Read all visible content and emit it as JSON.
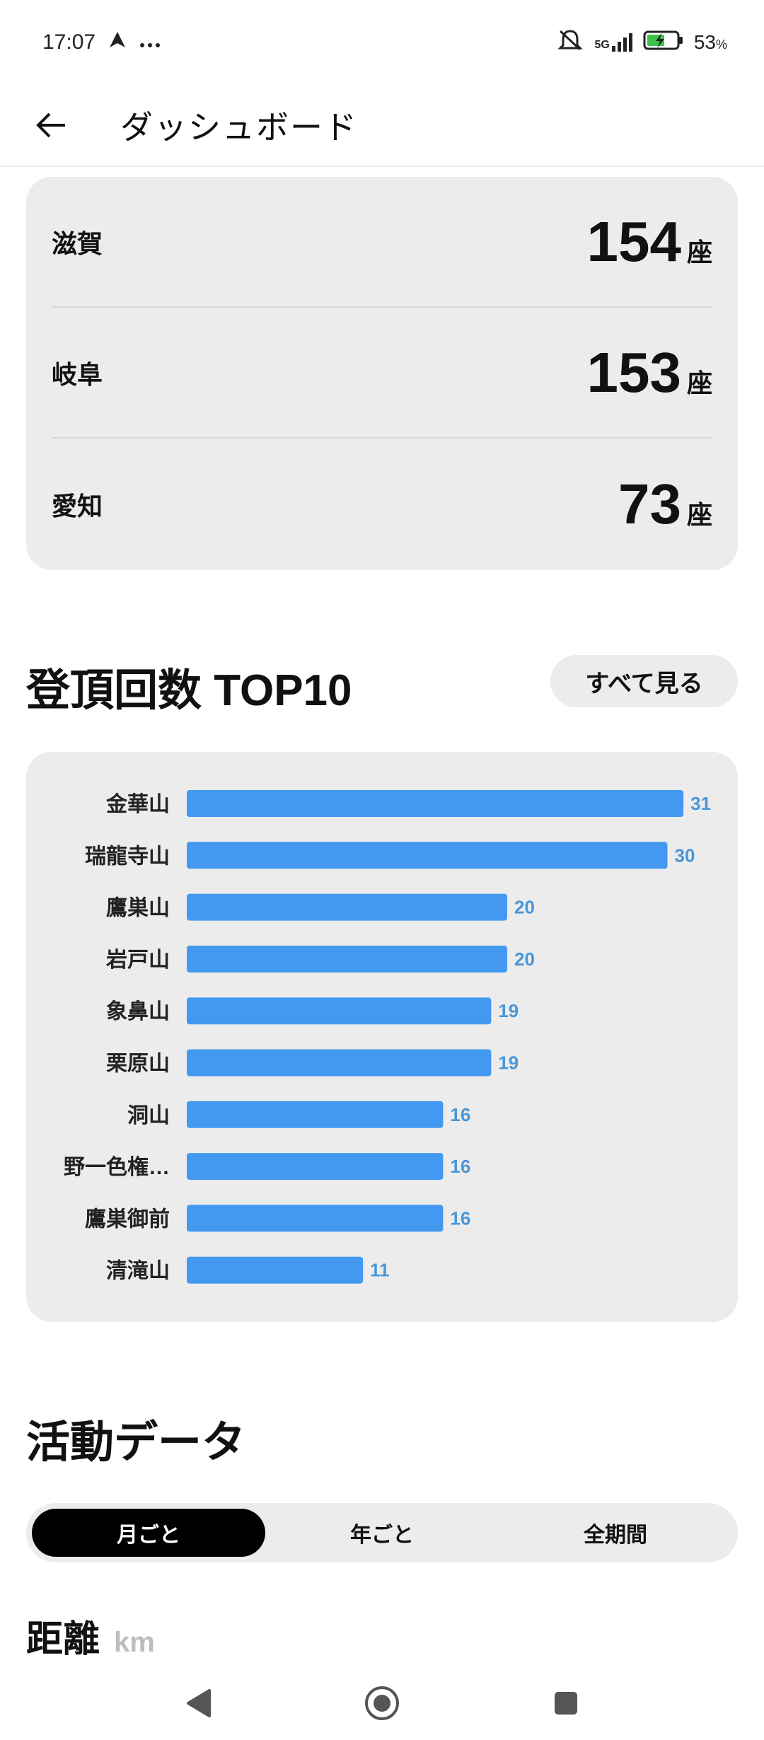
{
  "status_bar": {
    "time": "17:07",
    "notification_icons": [
      "navigation-icon",
      "more-dots-icon"
    ],
    "signal": "5G",
    "battery_percent": "53",
    "battery_unit": "%"
  },
  "app_bar": {
    "title": "ダッシュボード",
    "back_icon": "arrow-left-icon"
  },
  "prefectures": [
    {
      "name": "滋賀",
      "count": "154",
      "unit": "座"
    },
    {
      "name": "岐阜",
      "count": "153",
      "unit": "座"
    },
    {
      "name": "愛知",
      "count": "73",
      "unit": "座"
    }
  ],
  "top10": {
    "title": "登頂回数 TOP10",
    "see_all_label": "すべて見る"
  },
  "chart_data": {
    "type": "bar",
    "orientation": "horizontal",
    "categories": [
      "金華山",
      "瑞龍寺山",
      "鷹巣山",
      "岩戸山",
      "象鼻山",
      "栗原山",
      "洞山",
      "野一色権…",
      "鷹巣御前",
      "清滝山"
    ],
    "values": [
      31,
      30,
      20,
      20,
      19,
      19,
      16,
      16,
      16,
      11
    ],
    "bar_color": "#4399ef",
    "label_color": "#4a96d8",
    "grid": false
  },
  "activity": {
    "title": "活動データ",
    "tabs": [
      "月ごと",
      "年ごと",
      "全期間"
    ],
    "active_tab": "月ごと",
    "metric_title": "距離",
    "metric_unit": "km"
  }
}
